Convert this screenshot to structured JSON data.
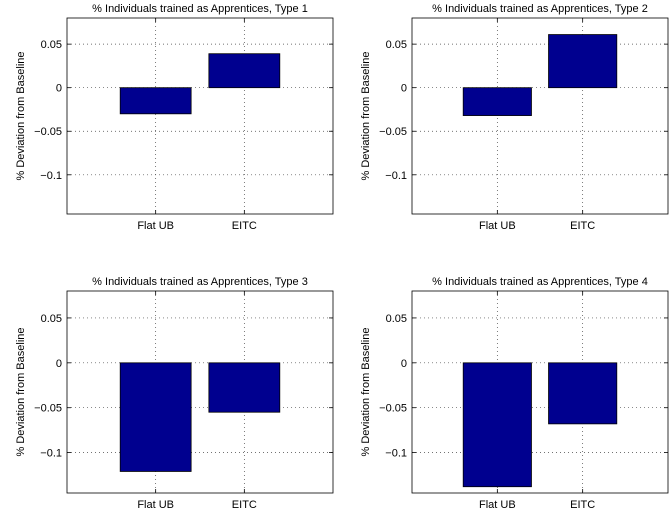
{
  "figure": {
    "background": "#ffffff",
    "bar_color": "#00008f",
    "grid_style": "dotted"
  },
  "chart_data": [
    {
      "type": "bar",
      "title": "% Individuals trained as Apprentices, Type 1",
      "xlabel": "",
      "ylabel": "% Deviation from Baseline",
      "categories": [
        "Flat UB",
        "EITC"
      ],
      "values": [
        -0.03,
        0.039
      ],
      "ylim": [
        -0.145,
        0.08
      ],
      "yticks": [
        0.05,
        0,
        -0.05,
        -0.1
      ],
      "ytick_labels": [
        "0.05",
        "0",
        "−0.05",
        "−0.1"
      ],
      "grid": true,
      "legend": "none"
    },
    {
      "type": "bar",
      "title": "% Individuals trained as Apprentices, Type 2",
      "xlabel": "",
      "ylabel": "% Deviation from Baseline",
      "categories": [
        "Flat UB",
        "EITC"
      ],
      "values": [
        -0.032,
        0.061
      ],
      "ylim": [
        -0.145,
        0.08
      ],
      "yticks": [
        0.05,
        0,
        -0.05,
        -0.1
      ],
      "ytick_labels": [
        "0.05",
        "0",
        "−0.05",
        "−0.1"
      ],
      "grid": true,
      "legend": "none"
    },
    {
      "type": "bar",
      "title": "% Individuals trained as Apprentices, Type 3",
      "xlabel": "",
      "ylabel": "% Deviation from Baseline",
      "categories": [
        "Flat UB",
        "EITC"
      ],
      "values": [
        -0.121,
        -0.055
      ],
      "ylim": [
        -0.145,
        0.08
      ],
      "yticks": [
        0.05,
        0,
        -0.05,
        -0.1
      ],
      "ytick_labels": [
        "0.05",
        "0",
        "−0.05",
        "−0.1"
      ],
      "grid": true,
      "legend": "none"
    },
    {
      "type": "bar",
      "title": "% Individuals trained as Apprentices, Type 4",
      "xlabel": "",
      "ylabel": "% Deviation from Baseline",
      "categories": [
        "Flat UB",
        "EITC"
      ],
      "values": [
        -0.138,
        -0.068
      ],
      "ylim": [
        -0.145,
        0.08
      ],
      "yticks": [
        0.05,
        0,
        -0.05,
        -0.1
      ],
      "ytick_labels": [
        "0.05",
        "0",
        "−0.05",
        "−0.1"
      ],
      "grid": true,
      "legend": "none"
    }
  ]
}
